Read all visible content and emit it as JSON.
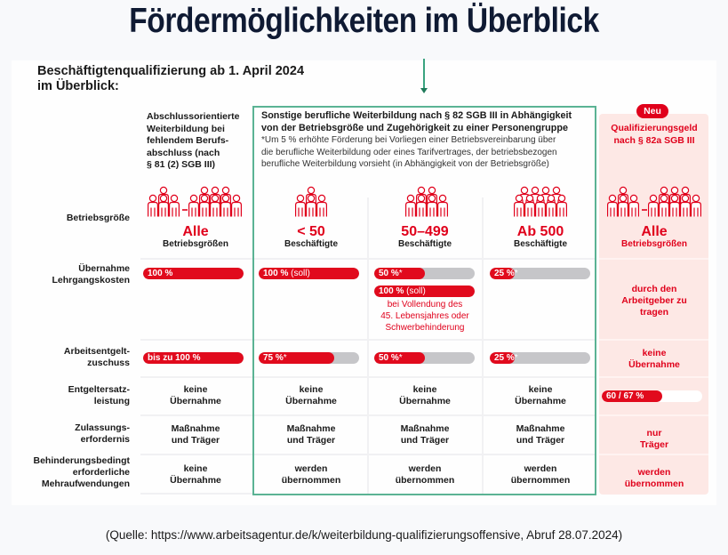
{
  "title": "Fördermöglichkeiten im Überblick",
  "subtitle_lines": [
    "Beschäftigtenqualifizierung ab 1. April 2024",
    "im Überblick:"
  ],
  "colors": {
    "accent_red": "#e0001b",
    "accent_green": "#5bb394",
    "bar_track": "#c6c6c9",
    "new_column_bg": "#fde8e5",
    "title_navy": "#0f1a33"
  },
  "columns": [
    {
      "header_lines": [
        "Abschlussorientierte",
        "Weiterbildung bei",
        "fehlendem Berufs-",
        "abschluss (nach",
        "§ 81 (2) SGB III)"
      ],
      "size_big": "Alle",
      "size_small": "Betriebsgrößen",
      "icon": "people-range-icon"
    },
    {
      "size_big": "< 50",
      "size_small": "Beschäftigte",
      "icon": "people-small-group-icon"
    },
    {
      "size_big": "50–499",
      "size_small": "Beschäftigte",
      "icon": "people-medium-group-icon"
    },
    {
      "size_big": "Ab 500",
      "size_small": "Beschäftigte",
      "icon": "people-large-group-icon"
    },
    {
      "badge": "Neu",
      "header_lines": [
        "Qualifizierungsgeld",
        "nach § 82a SGB III"
      ],
      "size_big": "Alle",
      "size_small": "Betriebsgrößen",
      "icon": "people-range-icon"
    }
  ],
  "group_header": {
    "title_lines": [
      "Sonstige berufliche Weiterbildung nach § 82 SGB III in Abhängigkeit",
      "von der Betriebsgröße und Zugehörigkeit zu einer Personengruppe"
    ],
    "note_lines": [
      "*Um 5 % erhöhte Förderung bei Vorliegen einer Betriebsvereinbarung über",
      "die berufliche Weiterbildung oder eines Tarifvertrages, der betriebsbezogen",
      "berufliche Weiterbildung vorsieht (in Abhängigkeit von der Betriebsgröße)"
    ]
  },
  "rows": {
    "betriebsgroesse": {
      "label": "Betriebsgröße"
    },
    "lehrgangskosten": {
      "label_lines": [
        "Übernahme",
        "Lehrgangskosten"
      ],
      "c1": {
        "text": "100 %",
        "soft": "",
        "value": 1.0
      },
      "c2": {
        "text": "100 %",
        "soft": " (soll)",
        "value": 1.0
      },
      "c3": {
        "text": "50 %",
        "soft": "*",
        "value": 0.5
      },
      "c3b": {
        "text": "100 %",
        "soft": " (soll)",
        "value": 1.0
      },
      "c3_note_lines": [
        "bei Vollendung des",
        "45. Lebensjahres oder",
        "Schwerbehinderung"
      ],
      "c4": {
        "text": "25 %",
        "soft": "*",
        "value": 0.25
      },
      "c5_lines": [
        "durch den",
        "Arbeitgeber zu",
        "tragen"
      ]
    },
    "arbeitsentgelt": {
      "label_lines": [
        "Arbeitsentgelt-",
        "zuschuss"
      ],
      "c1": {
        "text": "bis zu 100 %",
        "soft": "",
        "value": 1.0
      },
      "c2": {
        "text": "75 %",
        "soft": "*",
        "value": 0.75
      },
      "c3": {
        "text": "50 %",
        "soft": "*",
        "value": 0.5
      },
      "c4": {
        "text": "25 %",
        "soft": "*",
        "value": 0.25
      },
      "c5_lines": [
        "keine",
        "Übernahme"
      ]
    },
    "entgeltersatz": {
      "label_lines": [
        "Entgeltersatz-",
        "leistung"
      ],
      "c1_lines": [
        "keine",
        "Übernahme"
      ],
      "c2_lines": [
        "keine",
        "Übernahme"
      ],
      "c3_lines": [
        "keine",
        "Übernahme"
      ],
      "c4_lines": [
        "keine",
        "Übernahme"
      ],
      "c5": {
        "text": "60 / 67 %",
        "soft": "",
        "value": 0.6
      }
    },
    "zulassung": {
      "label_lines": [
        "Zulassungs-",
        "erfordernis"
      ],
      "c1_lines": [
        "Maßnahme",
        "und Träger"
      ],
      "c2_lines": [
        "Maßnahme",
        "und Träger"
      ],
      "c3_lines": [
        "Maßnahme",
        "und Träger"
      ],
      "c4_lines": [
        "Maßnahme",
        "und Träger"
      ],
      "c5_lines": [
        "nur",
        "Träger"
      ]
    },
    "mehraufwendungen": {
      "label_lines": [
        "Behinderungsbedingt",
        "erforderliche",
        "Mehraufwendungen"
      ],
      "c1_lines": [
        "keine",
        "Übernahme"
      ],
      "c2_lines": [
        "werden",
        "übernommen"
      ],
      "c3_lines": [
        "werden",
        "übernommen"
      ],
      "c4_lines": [
        "werden",
        "übernommen"
      ],
      "c5_lines": [
        "werden",
        "übernommen"
      ]
    }
  },
  "source": "(Quelle: https://www.arbeitsagentur.de/k/weiterbildung-qualifizierungsoffensive, Abruf 28.07.2024)"
}
